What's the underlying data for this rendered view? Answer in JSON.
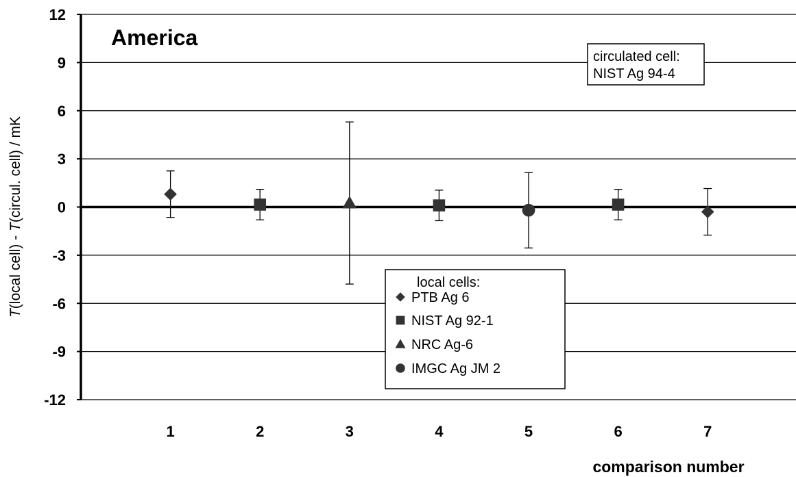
{
  "chart_data": {
    "type": "scatter",
    "title": "America",
    "xlabel": "comparison number",
    "ylabel_parts": [
      "T",
      "(local cell) - ",
      "T",
      "(circul. cell) /  mK"
    ],
    "ylim": [
      -12,
      12
    ],
    "yticks": [
      12,
      9,
      6,
      3,
      0,
      -3,
      -6,
      -9,
      -12
    ],
    "ytick_labels": [
      "12",
      "9",
      "6",
      "3",
      "0",
      "-3",
      "-6",
      "-9",
      "-12"
    ],
    "xlim": [
      0,
      8
    ],
    "xticks": [
      1,
      2,
      3,
      4,
      5,
      6,
      7
    ],
    "xtick_labels": [
      "1",
      "2",
      "3",
      "4",
      "5",
      "6",
      "7"
    ],
    "grid": true,
    "annotation": {
      "lines": [
        "circulated cell:",
        "NIST Ag 94-4"
      ],
      "placement": "top-right"
    },
    "legend": {
      "title": "local cells:",
      "placement": "lower-center",
      "entries": [
        {
          "name": "PTB Ag 6",
          "marker": "diamond"
        },
        {
          "name": "NIST Ag 92-1",
          "marker": "square"
        },
        {
          "name": "NRC Ag-6",
          "marker": "triangle"
        },
        {
          "name": "IMGC Ag JM 2",
          "marker": "circle"
        }
      ]
    },
    "marker_color": "#333333",
    "series": [
      {
        "name": "PTB Ag 6",
        "marker": "diamond",
        "points": [
          {
            "x": 1,
            "y": 0.8,
            "err": 1.45
          },
          {
            "x": 7,
            "y": -0.3,
            "err": 1.45
          }
        ]
      },
      {
        "name": "NIST Ag 92-1",
        "marker": "square",
        "points": [
          {
            "x": 2,
            "y": 0.15,
            "err": 0.95
          },
          {
            "x": 4,
            "y": 0.1,
            "err": 0.95
          },
          {
            "x": 6,
            "y": 0.15,
            "err": 0.95
          }
        ]
      },
      {
        "name": "NRC Ag-6",
        "marker": "triangle",
        "points": [
          {
            "x": 3,
            "y": 0.25,
            "err": 5.05
          }
        ]
      },
      {
        "name": "IMGC Ag JM 2",
        "marker": "circle",
        "points": [
          {
            "x": 5,
            "y": -0.2,
            "err": 2.35
          }
        ]
      }
    ]
  }
}
